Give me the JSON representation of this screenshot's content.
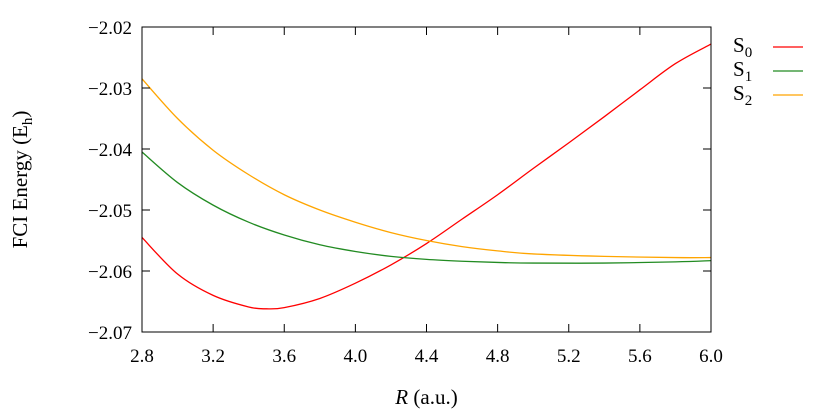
{
  "chart_data": {
    "type": "line",
    "title": "",
    "xlabel_var": "R",
    "xlabel_unit": " (a.u.)",
    "ylabel_main": "FCI Energy (E",
    "ylabel_sub": "h",
    "ylabel_end": ")",
    "xlim": [
      2.8,
      6.0
    ],
    "ylim": [
      -2.07,
      -2.02
    ],
    "xticks": [
      "2.8",
      "3.2",
      "3.6",
      "4.0",
      "4.4",
      "4.8",
      "5.2",
      "5.6",
      "6.0"
    ],
    "yticks": [
      "−2.02",
      "−2.03",
      "−2.04",
      "−2.05",
      "−2.06",
      "−2.07"
    ],
    "grid": false,
    "legend_placement": "outside-top-right",
    "series": [
      {
        "name": "S",
        "sub": "0",
        "color": "#ff0000",
        "x": [
          2.8,
          3.0,
          3.2,
          3.4,
          3.5,
          3.6,
          3.8,
          4.0,
          4.2,
          4.4,
          4.6,
          4.8,
          5.0,
          5.2,
          5.4,
          5.6,
          5.8,
          6.0
        ],
        "y": [
          -2.0545,
          -2.0605,
          -2.064,
          -2.0659,
          -2.0662,
          -2.066,
          -2.0645,
          -2.062,
          -2.059,
          -2.0555,
          -2.0515,
          -2.0475,
          -2.0432,
          -2.039,
          -2.0347,
          -2.0303,
          -2.026,
          -2.0228
        ]
      },
      {
        "name": "S",
        "sub": "1",
        "color": "#228b22",
        "x": [
          2.8,
          3.0,
          3.2,
          3.4,
          3.6,
          3.8,
          4.0,
          4.2,
          4.4,
          4.6,
          4.8,
          5.0,
          5.4,
          5.8,
          6.0
        ],
        "y": [
          -2.0405,
          -2.0455,
          -2.0492,
          -2.052,
          -2.0541,
          -2.0557,
          -2.0568,
          -2.0576,
          -2.0581,
          -2.0584,
          -2.0586,
          -2.0587,
          -2.0587,
          -2.0585,
          -2.0583
        ]
      },
      {
        "name": "S",
        "sub": "2",
        "color": "#ffa500",
        "x": [
          2.8,
          3.0,
          3.2,
          3.4,
          3.6,
          3.8,
          4.0,
          4.2,
          4.4,
          4.6,
          4.8,
          5.0,
          5.4,
          5.8,
          6.0
        ],
        "y": [
          -2.0285,
          -2.035,
          -2.0402,
          -2.0442,
          -2.0475,
          -2.05,
          -2.052,
          -2.0537,
          -2.055,
          -2.056,
          -2.0567,
          -2.0572,
          -2.0576,
          -2.0578,
          -2.0578
        ]
      }
    ]
  }
}
